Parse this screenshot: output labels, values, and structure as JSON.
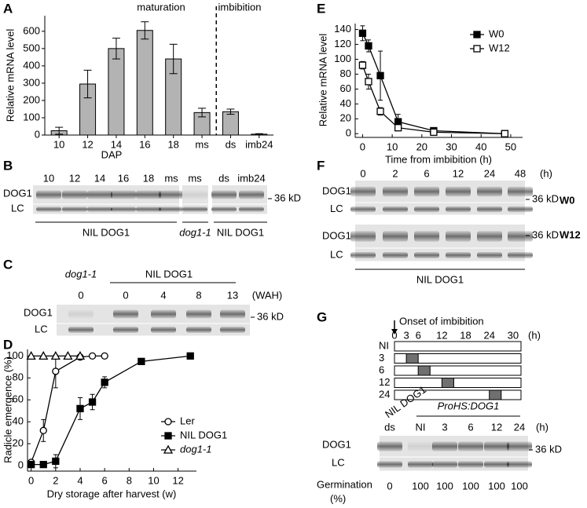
{
  "chart_data": [
    {
      "type": "bar",
      "panel": "A",
      "categories": [
        "10",
        "12",
        "14",
        "16",
        "18",
        "ms",
        "ds",
        "imb24"
      ],
      "values": [
        25,
        295,
        500,
        605,
        440,
        130,
        135,
        5
      ],
      "errors": [
        20,
        80,
        60,
        50,
        85,
        25,
        15,
        3
      ],
      "color": "#b3b3b3",
      "ylim": [
        0,
        690
      ],
      "yticks": [
        0,
        100,
        200,
        300,
        400,
        500,
        600
      ],
      "xlabel": "DAP",
      "ylabel": "Relative mRNA level",
      "annotations": [
        "maturation",
        "imbibition"
      ]
    },
    {
      "type": "line",
      "panel": "D",
      "xlabel": "Dry storage after harvest (w)",
      "ylabel": "Radicle emergence (%)",
      "xlim": [
        -0.3,
        13.5
      ],
      "xticks": [
        0,
        2,
        4,
        6,
        8,
        10,
        12
      ],
      "ylim": [
        -5,
        106
      ],
      "yticks": [
        0,
        20,
        40,
        60,
        80,
        100
      ],
      "series": [
        {
          "name": "Ler",
          "color": "#000",
          "marker": "circle",
          "filled": false,
          "x": [
            0,
            1,
            2,
            4,
            5,
            6
          ],
          "values": [
            3,
            32,
            86,
            99,
            100,
            100
          ],
          "errors": [
            2,
            10,
            15,
            0,
            0,
            0
          ]
        },
        {
          "name": "NIL DOG1",
          "color": "#000",
          "marker": "square",
          "filled": true,
          "x": [
            0,
            1,
            2,
            4,
            5,
            6,
            9,
            13
          ],
          "values": [
            1,
            1,
            4,
            52,
            58,
            76,
            95,
            100
          ],
          "errors": [
            1,
            1,
            6,
            10,
            7,
            5,
            0,
            0
          ]
        },
        {
          "name": "dog1-1",
          "color": "#000",
          "marker": "triangle",
          "filled": false,
          "x": [
            0,
            1,
            2,
            3,
            4
          ],
          "values": [
            100,
            100,
            100,
            100,
            100
          ],
          "errors": [
            0,
            0,
            0,
            0,
            0
          ]
        }
      ]
    },
    {
      "type": "line",
      "panel": "E",
      "xlabel": "Time from imbibition (h)",
      "ylabel": "Relative mRNA level",
      "xlim": [
        -2.5,
        54
      ],
      "xticks": [
        0,
        10,
        20,
        30,
        40,
        50
      ],
      "ylim": [
        -5,
        148
      ],
      "yticks": [
        0,
        20,
        40,
        60,
        80,
        100,
        120,
        140
      ],
      "series": [
        {
          "name": "W0",
          "color": "#000",
          "marker": "square",
          "filled": true,
          "x": [
            0,
            2,
            6,
            12,
            24,
            48
          ],
          "values": [
            135,
            118,
            78,
            16,
            4,
            0
          ],
          "errors": [
            10,
            8,
            33,
            10,
            3,
            2
          ]
        },
        {
          "name": "W12",
          "color": "#000",
          "marker": "square",
          "filled": false,
          "x": [
            0,
            2,
            6,
            12,
            24,
            48
          ],
          "values": [
            92,
            70,
            30,
            8,
            2,
            0
          ],
          "errors": [
            5,
            10,
            5,
            3,
            1,
            1
          ]
        }
      ]
    }
  ],
  "panels": {
    "B": {
      "label": "B",
      "lanes": [
        "10",
        "12",
        "14",
        "16",
        "18",
        "ms",
        "ms",
        "ds",
        "imb24"
      ],
      "rows": [
        "DOG1",
        "LC"
      ],
      "marker": "36 kD",
      "groups": [
        "NIL DOG1",
        "dog1-1",
        "NIL DOG1"
      ]
    },
    "C": {
      "label": "C",
      "groups": [
        "dog1-1",
        "NIL DOG1"
      ],
      "lanes": [
        "0",
        "0",
        "4",
        "8",
        "13"
      ],
      "unit": "(WAH)",
      "rows": [
        "DOG1",
        "LC"
      ],
      "marker": "36 kD"
    },
    "F": {
      "label": "F",
      "lanes": [
        "0",
        "2",
        "6",
        "12",
        "24",
        "48"
      ],
      "unit": "(h)",
      "blots": [
        {
          "name": "W0",
          "rows": [
            "DOG1",
            "LC"
          ],
          "marker": "36 kD"
        },
        {
          "name": "W12",
          "rows": [
            "DOG1",
            "LC"
          ],
          "marker": "36 kD"
        }
      ],
      "group": "NIL DOG1"
    },
    "G": {
      "label": "G",
      "onset": "Onset of imbibition",
      "timeline": {
        "ticks": [
          0,
          3,
          6,
          12,
          18,
          24,
          30
        ],
        "unit": "(h)",
        "rows": [
          "NI",
          "3",
          "6",
          "12",
          "24"
        ],
        "pulses": [
          null,
          {
            "start": 3,
            "end": 6
          },
          {
            "start": 6,
            "end": 9
          },
          {
            "start": 12,
            "end": 15
          },
          {
            "start": 24,
            "end": 27
          }
        ]
      },
      "blot": {
        "groups": [
          "NIL DOG1",
          "ProHS:DOG1"
        ],
        "lanes": [
          "ds",
          "NI",
          "3",
          "6",
          "12",
          "24"
        ],
        "unit": "(h)",
        "rows": [
          "DOG1",
          "LC"
        ],
        "marker": "36 kD"
      },
      "germination": {
        "label": [
          "Germination",
          "(%)"
        ],
        "values": [
          0,
          100,
          100,
          100,
          100,
          100
        ]
      }
    }
  }
}
